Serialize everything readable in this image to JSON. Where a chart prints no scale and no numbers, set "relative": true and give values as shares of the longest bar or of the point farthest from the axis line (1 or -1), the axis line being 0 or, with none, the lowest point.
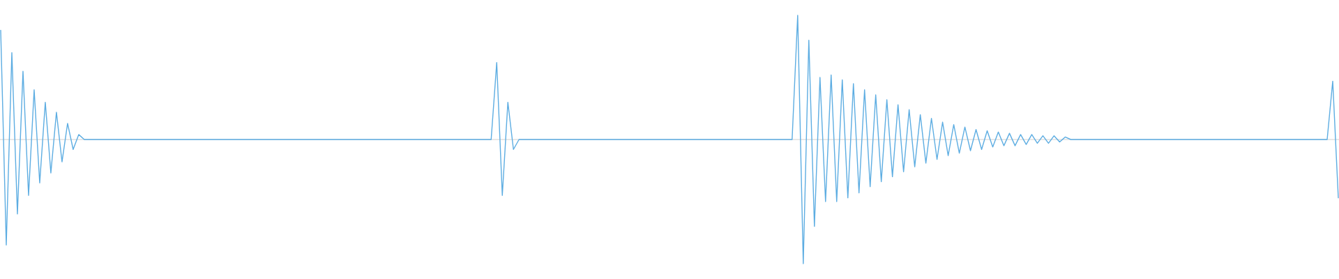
{
  "chart_data": {
    "type": "line",
    "relative": true,
    "color": "#5dade2",
    "line_style": "solid",
    "marker": "none",
    "categories": [
      null,
      null,
      null,
      null,
      null,
      null,
      null,
      null,
      null,
      null,
      null,
      null,
      null,
      null,
      null,
      null,
      null,
      null,
      null,
      null,
      null,
      null,
      null,
      null,
      null,
      null,
      null,
      null,
      null,
      null,
      null,
      null,
      null,
      null,
      null,
      null,
      null,
      null,
      null,
      null,
      null,
      null,
      null,
      null,
      null,
      null,
      null,
      null,
      null,
      null,
      null,
      null,
      null,
      null,
      null,
      null,
      null,
      null,
      null,
      null,
      null,
      null,
      null,
      null,
      null,
      null,
      null,
      null,
      null,
      null,
      null,
      null,
      null,
      null,
      null,
      null,
      null,
      null,
      null,
      null,
      null,
      null,
      null,
      null,
      null,
      null,
      null,
      null,
      null,
      null,
      null,
      null,
      null,
      null,
      null,
      null,
      null,
      null,
      null,
      null,
      null,
      null,
      null,
      null,
      null,
      null,
      null,
      null,
      null,
      null,
      null,
      null,
      null,
      null,
      null,
      null,
      null,
      null,
      null,
      null,
      null,
      null,
      null,
      null,
      null,
      null,
      null,
      null,
      null,
      null,
      null,
      null,
      null,
      null,
      null,
      null,
      null,
      null,
      null,
      null,
      null,
      null,
      null,
      null,
      null,
      null,
      null,
      null,
      null,
      null,
      null,
      null,
      null,
      null,
      null,
      null,
      null,
      null,
      null,
      null,
      null,
      null,
      null,
      null,
      null,
      null,
      null,
      null,
      null,
      null,
      null,
      null,
      null,
      null,
      null,
      null,
      null,
      null,
      null,
      null,
      null,
      null,
      null,
      null,
      null,
      null,
      null,
      null,
      null,
      null,
      null,
      null,
      null,
      null,
      null,
      null,
      null,
      null,
      null,
      null,
      null,
      null,
      null,
      null,
      null,
      null,
      null,
      null,
      null,
      null,
      null,
      null,
      null,
      null,
      null,
      null,
      null,
      null,
      null,
      null,
      null,
      null,
      null,
      null,
      null,
      null,
      null,
      null,
      null,
      null,
      null,
      null,
      null,
      null,
      null,
      null,
      null,
      null,
      null,
      null,
      null
    ],
    "values": [
      0.88,
      -0.85,
      0.7,
      -0.6,
      0.55,
      -0.45,
      0.4,
      -0.35,
      0.3,
      -0.27,
      0.22,
      -0.18,
      0.13,
      -0.08,
      0.04,
      0,
      0,
      0,
      0,
      0,
      0,
      0,
      0,
      0,
      0,
      0,
      0,
      0,
      0,
      0,
      0,
      0,
      0,
      0,
      0,
      0,
      0,
      0,
      0,
      0,
      0,
      0,
      0,
      0,
      0,
      0,
      0,
      0,
      0,
      0,
      0,
      0,
      0,
      0,
      0,
      0,
      0,
      0,
      0,
      0,
      0,
      0,
      0,
      0,
      0,
      0,
      0,
      0,
      0,
      0,
      0,
      0,
      0,
      0,
      0,
      0,
      0,
      0,
      0,
      0,
      0,
      0,
      0,
      0,
      0,
      0,
      0,
      0,
      0,
      0.62,
      -0.45,
      0.3,
      -0.08,
      0,
      0,
      0,
      0,
      0,
      0,
      0,
      0,
      0,
      0,
      0,
      0,
      0,
      0,
      0,
      0,
      0,
      0,
      0,
      0,
      0,
      0,
      0,
      0,
      0,
      0,
      0,
      0,
      0,
      0,
      0,
      0,
      0,
      0,
      0,
      0,
      0,
      0,
      0,
      0,
      0,
      0,
      0,
      0,
      0,
      0,
      0,
      0,
      0,
      0,
      1,
      -1,
      0.8,
      -0.7,
      0.5,
      -0.5,
      0.52,
      -0.5,
      0.48,
      -0.47,
      0.45,
      -0.43,
      0.4,
      -0.38,
      0.36,
      -0.34,
      0.32,
      -0.3,
      0.28,
      -0.26,
      0.24,
      -0.22,
      0.2,
      -0.19,
      0.17,
      -0.16,
      0.14,
      -0.13,
      0.12,
      -0.11,
      0.1,
      -0.09,
      0.08,
      -0.08,
      0.07,
      -0.06,
      0.06,
      -0.05,
      0.05,
      -0.05,
      0.04,
      -0.04,
      0.04,
      -0.03,
      0.03,
      -0.03,
      0.03,
      -0.02,
      0.02,
      0,
      0,
      0,
      0,
      0,
      0,
      0,
      0,
      0,
      0,
      0,
      0,
      0,
      0,
      0,
      0,
      0,
      0,
      0,
      0,
      0,
      0,
      0,
      0,
      0,
      0,
      0,
      0,
      0,
      0,
      0,
      0,
      0,
      0,
      0,
      0,
      0,
      0,
      0,
      0,
      0,
      0,
      0,
      0,
      0,
      0,
      0,
      0.47,
      -0.47
    ]
  }
}
